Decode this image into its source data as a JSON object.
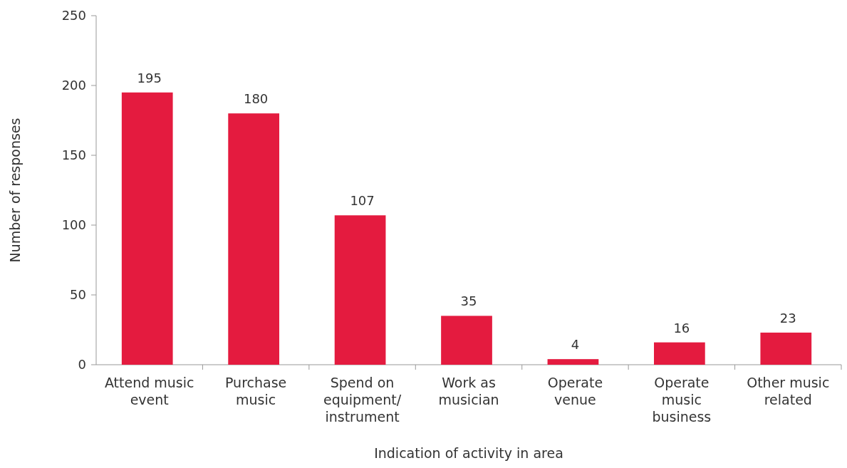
{
  "chart_data": {
    "type": "bar",
    "xlabel": "Indication of activity in area",
    "ylabel": "Number of responses",
    "categories": [
      "Attend music event",
      "Purchase music",
      "Spend on equipment/ instrument",
      "Work as musician",
      "Operate venue",
      "Operate music business",
      "Other music related"
    ],
    "values": [
      195,
      180,
      107,
      35,
      4,
      16,
      23
    ],
    "color": "#e41b3f",
    "ylim": [
      0,
      250
    ],
    "yticks": [
      0,
      50,
      100,
      150,
      200,
      250
    ],
    "grid": false,
    "data_labels": true
  }
}
